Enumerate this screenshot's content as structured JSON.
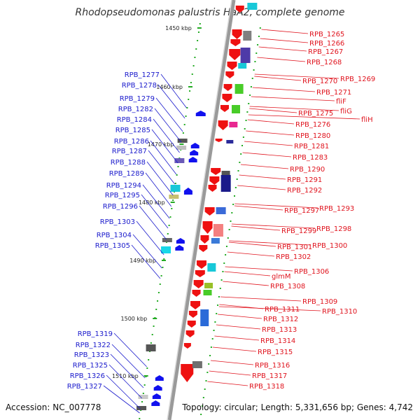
{
  "title": "Rhodopseudomonas palustris HaA2, complete genome",
  "accession": "Accession: NC_007778",
  "topology": "Topology: circular; Length: 5,331,656 bp; Genes: 4,742",
  "colors": {
    "left_label": "#1a1acc",
    "right_label": "#e0141e",
    "forward_arrow": "#ee1111",
    "reverse_arrow": "#1111ee",
    "axis": "#999999",
    "tick": "#22aa22"
  },
  "scale_ticks": [
    {
      "label": "1450 kbp"
    },
    {
      "label": "1460 kbp"
    },
    {
      "label": "1470 kbp"
    },
    {
      "label": "1480 kbp"
    },
    {
      "label": "1490 kbp"
    },
    {
      "label": "1500 kbp"
    },
    {
      "label": "1510 kbp"
    }
  ],
  "left_labels": [
    {
      "text": "RPB_1277"
    },
    {
      "text": "RPB_1278"
    },
    {
      "text": "RPB_1279"
    },
    {
      "text": "RPB_1282"
    },
    {
      "text": "RPB_1284"
    },
    {
      "text": "RPB_1285"
    },
    {
      "text": "RPB_1286"
    },
    {
      "text": "RPB_1287"
    },
    {
      "text": "RPB_1288"
    },
    {
      "text": "RPB_1289"
    },
    {
      "text": "RPB_1294"
    },
    {
      "text": "RPB_1295"
    },
    {
      "text": "RPB_1296"
    },
    {
      "text": "RPB_1303"
    },
    {
      "text": "RPB_1304"
    },
    {
      "text": "RPB_1305"
    },
    {
      "text": "RPB_1319"
    },
    {
      "text": "RPB_1322"
    },
    {
      "text": "RPB_1323"
    },
    {
      "text": "RPB_1325"
    },
    {
      "text": "RPB_1326"
    },
    {
      "text": "RPB_1327"
    }
  ],
  "right_labels": [
    {
      "text": "RPB_1265"
    },
    {
      "text": "RPB_1266"
    },
    {
      "text": "RPB_1267"
    },
    {
      "text": "RPB_1268"
    },
    {
      "text": "RPB_1269"
    },
    {
      "text": "RPB_1270"
    },
    {
      "text": "RPB_1271"
    },
    {
      "text": "fliF"
    },
    {
      "text": "fliG"
    },
    {
      "text": "fliH"
    },
    {
      "text": "RPB_1275"
    },
    {
      "text": "RPB_1276"
    },
    {
      "text": "RPB_1280"
    },
    {
      "text": "RPB_1281"
    },
    {
      "text": "RPB_1283"
    },
    {
      "text": "RPB_1290"
    },
    {
      "text": "RPB_1291"
    },
    {
      "text": "RPB_1292"
    },
    {
      "text": "RPB_1297"
    },
    {
      "text": "RPB_1293"
    },
    {
      "text": "RPB_1299"
    },
    {
      "text": "RPB_1298"
    },
    {
      "text": "RPB_1301"
    },
    {
      "text": "RPB_1300"
    },
    {
      "text": "RPB_1302"
    },
    {
      "text": "RPB_1306"
    },
    {
      "text": "glmM"
    },
    {
      "text": "RPB_1308"
    },
    {
      "text": "RPB_1309"
    },
    {
      "text": "RPB_1310"
    },
    {
      "text": "RPB_1311"
    },
    {
      "text": "RPB_1312"
    },
    {
      "text": "RPB_1313"
    },
    {
      "text": "RPB_1314"
    },
    {
      "text": "RPB_1315"
    },
    {
      "text": "RPB_1316"
    },
    {
      "text": "RPB_1317"
    },
    {
      "text": "RPB_1318"
    }
  ]
}
